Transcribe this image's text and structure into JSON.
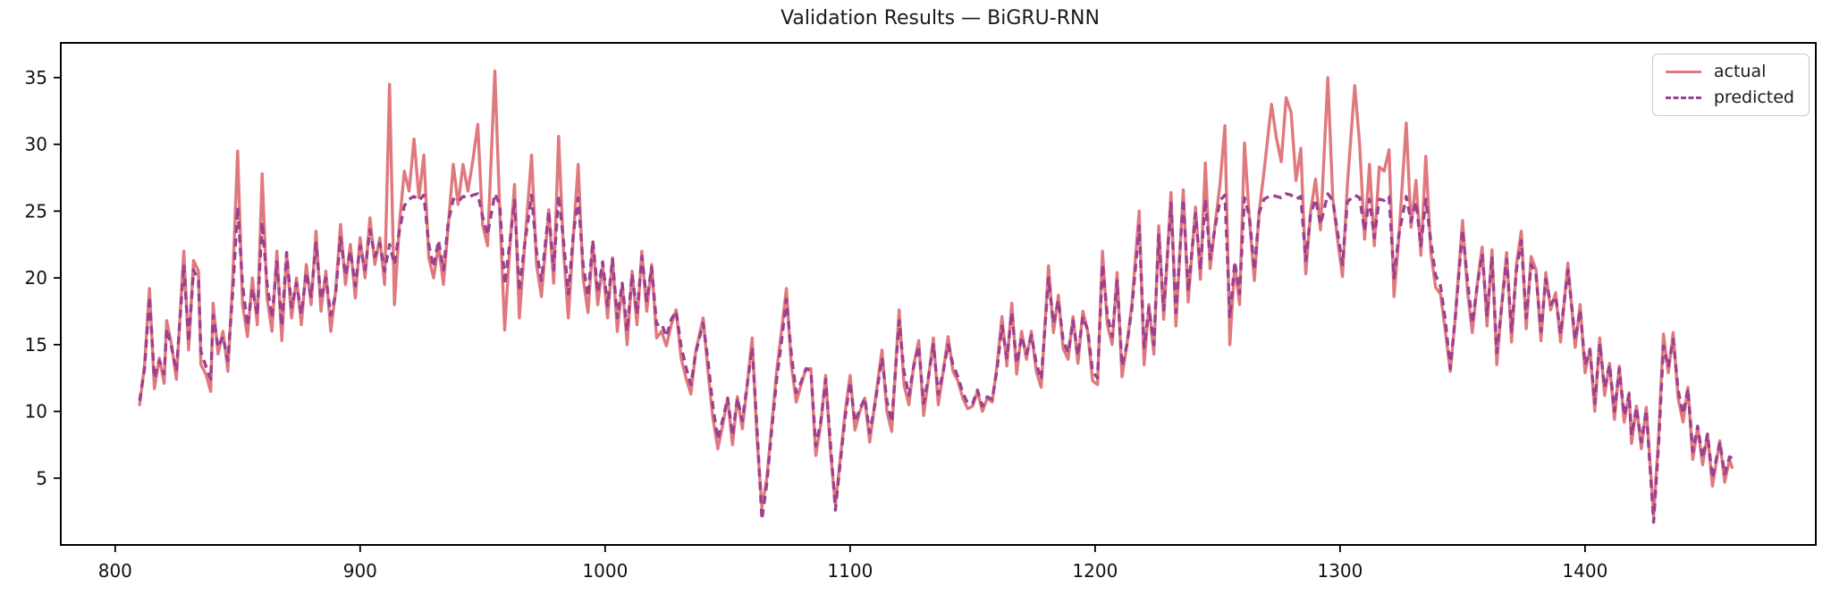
{
  "figure": {
    "title": "Validation Results — BiGRU-RNN",
    "background": "#ffffff",
    "spine_color": "#000000",
    "tick_color": "#000000",
    "tick_label_color": "#111111",
    "title_color": "#1a1a1a"
  },
  "legend": {
    "position": "upper right",
    "items": [
      {
        "label": "actual",
        "color": "#e0797e",
        "style": "solid"
      },
      {
        "label": "predicted",
        "color": "#9c4190",
        "style": "dashed"
      }
    ]
  },
  "chart_data": {
    "type": "line",
    "title": "Validation Results — BiGRU-RNN",
    "xlabel": "",
    "ylabel": "",
    "grid": false,
    "legend_position": "upper right",
    "xlim": [
      777.8,
      1494.2
    ],
    "ylim": [
      0,
      37.6
    ],
    "x_ticks": [
      800,
      900,
      1000,
      1100,
      1200,
      1300,
      1400
    ],
    "y_ticks": [
      5,
      10,
      15,
      20,
      25,
      30,
      35
    ],
    "x": [
      810,
      812,
      814,
      816,
      818,
      820,
      821,
      823,
      825,
      828,
      830,
      832,
      834,
      835,
      837,
      839,
      840,
      842,
      844,
      846,
      848,
      850,
      852,
      854,
      856,
      858,
      860,
      862,
      864,
      866,
      868,
      870,
      872,
      874,
      876,
      878,
      880,
      882,
      884,
      886,
      888,
      890,
      892,
      894,
      896,
      898,
      900,
      902,
      904,
      906,
      908,
      910,
      912,
      914,
      916,
      918,
      920,
      922,
      924,
      926,
      928,
      930,
      932,
      934,
      936,
      938,
      940,
      942,
      944,
      946,
      948,
      950,
      952,
      955,
      957,
      959,
      961,
      963,
      965,
      967,
      970,
      972,
      974,
      977,
      979,
      981,
      983,
      985,
      987,
      989,
      991,
      993,
      995,
      997,
      999,
      1001,
      1003,
      1005,
      1007,
      1009,
      1011,
      1013,
      1015,
      1017,
      1019,
      1021,
      1023,
      1025,
      1027,
      1029,
      1031,
      1033,
      1035,
      1037,
      1040,
      1042,
      1044,
      1046,
      1048,
      1050,
      1052,
      1054,
      1056,
      1058,
      1060,
      1062,
      1064,
      1066,
      1068,
      1070,
      1072,
      1074,
      1076,
      1078,
      1080,
      1082,
      1084,
      1086,
      1088,
      1090,
      1092,
      1094,
      1096,
      1098,
      1100,
      1102,
      1104,
      1106,
      1108,
      1110,
      1113,
      1115,
      1117,
      1120,
      1122,
      1124,
      1126,
      1128,
      1130,
      1132,
      1134,
      1136,
      1138,
      1140,
      1142,
      1144,
      1146,
      1148,
      1150,
      1152,
      1154,
      1156,
      1158,
      1160,
      1162,
      1164,
      1166,
      1168,
      1170,
      1172,
      1174,
      1176,
      1178,
      1181,
      1183,
      1185,
      1187,
      1189,
      1191,
      1193,
      1195,
      1197,
      1199,
      1201,
      1203,
      1205,
      1207,
      1209,
      1211,
      1213,
      1215,
      1218,
      1220,
      1222,
      1224,
      1226,
      1228,
      1231,
      1233,
      1236,
      1238,
      1241,
      1243,
      1245,
      1247,
      1249,
      1251,
      1253,
      1255,
      1257,
      1259,
      1261,
      1263,
      1265,
      1267,
      1269,
      1272,
      1274,
      1276,
      1278,
      1280,
      1282,
      1284,
      1286,
      1288,
      1290,
      1292,
      1295,
      1297,
      1299,
      1301,
      1303,
      1306,
      1308,
      1310,
      1312,
      1314,
      1316,
      1318,
      1320,
      1322,
      1324,
      1327,
      1329,
      1331,
      1333,
      1335,
      1337,
      1339,
      1341,
      1343,
      1345,
      1347,
      1350,
      1352,
      1354,
      1356,
      1358,
      1360,
      1362,
      1364,
      1366,
      1368,
      1370,
      1372,
      1374,
      1376,
      1378,
      1380,
      1382,
      1384,
      1386,
      1388,
      1390,
      1393,
      1396,
      1398,
      1400,
      1402,
      1404,
      1406,
      1408,
      1410,
      1412,
      1414,
      1416,
      1418,
      1419,
      1421,
      1423,
      1425,
      1428,
      1430,
      1432,
      1434,
      1436,
      1438,
      1440,
      1442,
      1444,
      1446,
      1448,
      1450,
      1452,
      1455,
      1457,
      1459,
      1460
    ],
    "series": [
      {
        "name": "actual",
        "color": "#e0797e",
        "style": "solid",
        "linewidth": 3.4,
        "values": [
          10.5,
          13.5,
          19.2,
          11.7,
          14.0,
          12.1,
          16.8,
          15.0,
          12.4,
          22.0,
          14.6,
          21.3,
          20.5,
          13.5,
          12.8,
          11.5,
          18.1,
          14.3,
          16.0,
          13.0,
          20.0,
          29.5,
          18.0,
          15.6,
          20.0,
          16.5,
          27.8,
          18.5,
          16.0,
          22.0,
          15.3,
          21.9,
          17.0,
          20.0,
          16.5,
          21.0,
          18.0,
          23.5,
          17.5,
          20.5,
          16.0,
          19.0,
          24.0,
          19.5,
          22.5,
          18.5,
          23.0,
          20.0,
          24.5,
          21.0,
          23.0,
          19.5,
          34.5,
          18.0,
          24.0,
          28.0,
          26.5,
          30.4,
          26.0,
          29.2,
          21.5,
          20.0,
          22.5,
          19.5,
          24.0,
          28.5,
          25.5,
          28.5,
          26.5,
          28.8,
          31.5,
          24.0,
          22.4,
          35.5,
          25.0,
          16.1,
          22.0,
          27.0,
          17.0,
          22.0,
          29.2,
          21.0,
          18.6,
          25.1,
          19.6,
          30.6,
          22.0,
          17.0,
          23.0,
          28.5,
          20.0,
          17.4,
          22.7,
          18.0,
          21.0,
          17.0,
          21.5,
          16.0,
          19.5,
          15.0,
          20.5,
          16.5,
          22.0,
          17.5,
          21.0,
          15.5,
          16.0,
          14.9,
          16.5,
          17.6,
          14.0,
          12.5,
          11.3,
          14.5,
          17.0,
          13.0,
          9.5,
          7.2,
          9.0,
          11.0,
          7.5,
          11.1,
          8.7,
          12.0,
          15.5,
          8.0,
          2.8,
          5.0,
          9.0,
          13.0,
          16.0,
          19.2,
          13.5,
          10.7,
          12.0,
          13.2,
          13.2,
          6.7,
          9.0,
          12.7,
          7.0,
          3.0,
          6.5,
          10.0,
          12.7,
          8.6,
          10.0,
          11.0,
          7.7,
          10.5,
          14.6,
          10.0,
          8.5,
          17.6,
          12.0,
          10.5,
          13.5,
          15.3,
          9.7,
          12.5,
          15.5,
          10.5,
          13.0,
          15.6,
          13.0,
          12.3,
          11.0,
          10.2,
          10.4,
          11.5,
          10.0,
          11.0,
          10.7,
          13.5,
          17.1,
          13.4,
          18.1,
          12.8,
          16.0,
          13.9,
          16.0,
          13.0,
          11.8,
          20.9,
          15.9,
          18.7,
          14.7,
          13.9,
          17.1,
          13.6,
          17.5,
          16.0,
          12.3,
          12.0,
          22.0,
          16.5,
          15.0,
          20.4,
          12.6,
          15.0,
          18.0,
          25.0,
          13.5,
          18.0,
          14.3,
          23.9,
          16.9,
          26.4,
          16.4,
          26.6,
          18.2,
          25.3,
          19.9,
          28.6,
          20.7,
          24.0,
          27.0,
          31.4,
          15.0,
          21.0,
          18.0,
          30.1,
          24.4,
          19.8,
          25.0,
          28.0,
          33.0,
          30.5,
          28.7,
          33.5,
          32.4,
          27.3,
          29.7,
          20.3,
          25.0,
          27.4,
          23.6,
          35.0,
          26.0,
          22.9,
          20.1,
          27.0,
          34.4,
          30.0,
          22.9,
          28.5,
          22.4,
          28.3,
          28.0,
          29.6,
          18.6,
          23.0,
          31.6,
          23.8,
          27.3,
          21.7,
          29.1,
          22.0,
          19.3,
          18.8,
          16.0,
          13.0,
          17.0,
          24.3,
          19.0,
          15.9,
          19.5,
          22.3,
          16.4,
          22.1,
          13.5,
          18.0,
          21.9,
          15.2,
          21.0,
          23.5,
          16.2,
          21.6,
          20.6,
          15.3,
          20.4,
          17.6,
          18.9,
          15.2,
          21.1,
          14.8,
          18.0,
          12.9,
          14.7,
          10.0,
          15.5,
          11.2,
          13.6,
          9.4,
          13.4,
          9.2,
          11.4,
          7.6,
          10.4,
          7.2,
          10.3,
          2.2,
          8.0,
          15.8,
          12.9,
          15.9,
          11.0,
          9.2,
          11.8,
          6.4,
          8.8,
          6.0,
          8.3,
          4.4,
          7.8,
          4.7,
          6.4,
          5.8
        ]
      },
      {
        "name": "predicted",
        "color": "#9c4190",
        "style": "dashed",
        "linewidth": 3.4,
        "values": [
          10.8,
          13.2,
          18.6,
          12.5,
          13.8,
          12.8,
          16.2,
          14.8,
          13.0,
          21.0,
          15.2,
          20.6,
          19.8,
          14.5,
          13.4,
          12.4,
          17.2,
          14.8,
          15.6,
          13.8,
          19.0,
          25.3,
          19.5,
          16.4,
          19.2,
          17.2,
          24.2,
          19.6,
          17.0,
          21.2,
          16.4,
          21.9,
          17.8,
          19.6,
          17.3,
          20.4,
          18.6,
          22.6,
          18.4,
          20.0,
          17.2,
          18.8,
          23.0,
          20.2,
          22.0,
          19.4,
          22.4,
          20.6,
          23.6,
          21.6,
          22.6,
          20.5,
          22.5,
          21.0,
          23.5,
          25.4,
          25.9,
          26.1,
          25.8,
          26.2,
          22.5,
          20.8,
          22.8,
          20.6,
          24.2,
          25.9,
          25.7,
          26.1,
          26.0,
          26.2,
          26.3,
          24.6,
          23.2,
          26.3,
          25.5,
          19.5,
          22.5,
          25.8,
          19.0,
          22.3,
          26.2,
          22.0,
          19.8,
          25.0,
          20.6,
          26.2,
          22.8,
          18.8,
          23.2,
          26.0,
          21.0,
          18.6,
          22.8,
          18.9,
          21.2,
          17.9,
          21.4,
          17.0,
          19.6,
          16.0,
          20.3,
          17.3,
          21.6,
          18.3,
          20.8,
          16.5,
          16.6,
          15.6,
          16.9,
          17.5,
          14.9,
          13.3,
          12.0,
          14.4,
          16.6,
          13.8,
          10.4,
          7.9,
          9.4,
          11.0,
          8.2,
          11.0,
          9.3,
          12.0,
          14.8,
          8.8,
          1.9,
          4.6,
          8.6,
          12.4,
          15.2,
          18.4,
          14.3,
          11.4,
          12.2,
          13.2,
          13.0,
          7.4,
          9.2,
          12.4,
          7.6,
          2.6,
          6.2,
          9.6,
          12.2,
          9.2,
          10.2,
          11.0,
          8.4,
          10.4,
          14.0,
          10.8,
          9.2,
          16.8,
          13.0,
          11.2,
          13.4,
          14.9,
          10.6,
          12.6,
          15.0,
          11.3,
          13.0,
          15.0,
          13.5,
          12.6,
          11.4,
          10.6,
          10.6,
          11.6,
          10.4,
          11.1,
          10.9,
          13.2,
          16.4,
          14.0,
          17.4,
          13.6,
          15.6,
          14.3,
          15.7,
          13.6,
          12.4,
          20.0,
          16.6,
          18.3,
          15.3,
          14.4,
          16.8,
          14.2,
          17.1,
          16.1,
          13.0,
          12.5,
          21.0,
          17.2,
          15.6,
          19.8,
          13.4,
          15.0,
          17.7,
          23.9,
          14.8,
          17.8,
          15.0,
          23.2,
          17.6,
          25.6,
          17.4,
          25.9,
          19.0,
          24.8,
          20.6,
          25.9,
          21.4,
          23.8,
          25.8,
          26.2,
          17.0,
          21.2,
          18.8,
          26.0,
          24.6,
          20.6,
          24.9,
          25.9,
          26.2,
          26.1,
          26.0,
          26.3,
          26.2,
          25.9,
          26.1,
          21.3,
          24.8,
          25.9,
          24.0,
          26.3,
          25.8,
          23.4,
          21.0,
          25.7,
          26.2,
          26.0,
          23.5,
          25.9,
          23.0,
          25.9,
          25.8,
          26.1,
          20.0,
          23.2,
          26.1,
          24.2,
          25.7,
          22.4,
          25.9,
          22.8,
          20.2,
          19.4,
          16.8,
          13.2,
          17.0,
          23.6,
          19.8,
          16.6,
          19.4,
          21.8,
          17.2,
          21.6,
          14.4,
          17.9,
          21.4,
          16.0,
          20.6,
          22.8,
          17.0,
          21.0,
          20.2,
          16.0,
          19.9,
          18.0,
          18.6,
          15.8,
          20.6,
          15.4,
          17.6,
          13.5,
          14.6,
          10.6,
          15.1,
          11.8,
          13.5,
          10.0,
          13.2,
          9.7,
          11.3,
          8.2,
          10.3,
          7.7,
          10.1,
          1.7,
          7.4,
          14.9,
          13.3,
          15.4,
          11.6,
          9.8,
          11.7,
          7.0,
          8.9,
          6.5,
          8.3,
          5.0,
          7.7,
          5.3,
          6.6,
          6.5
        ]
      }
    ]
  }
}
